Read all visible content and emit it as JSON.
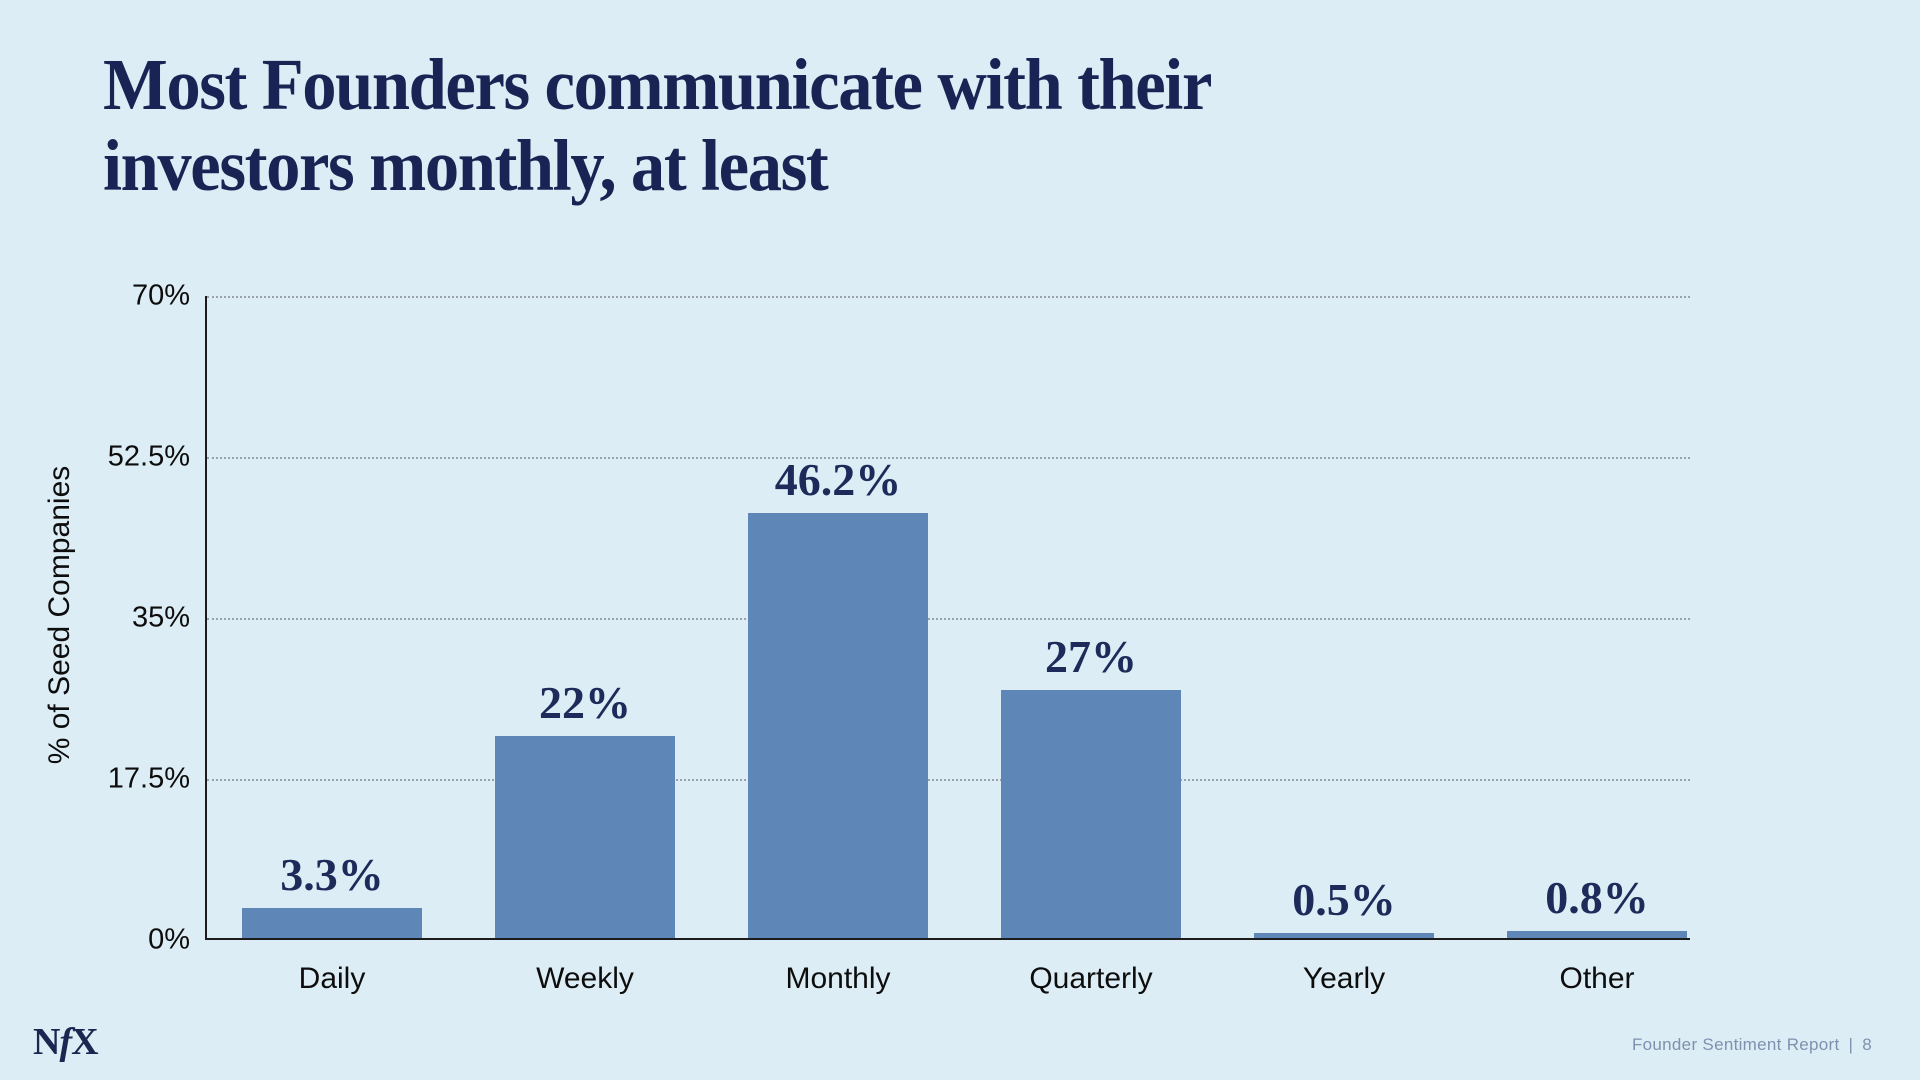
{
  "slide": {
    "title_line1": "Most Founders communicate with their",
    "title_line2": "investors monthly, at least"
  },
  "chart_data": {
    "type": "bar",
    "title": "Most Founders communicate with their investors monthly, at least",
    "categories": [
      "Daily",
      "Weekly",
      "Monthly",
      "Quarterly",
      "Yearly",
      "Other"
    ],
    "values": [
      3.3,
      22,
      46.2,
      27,
      0.5,
      0.8
    ],
    "value_labels": [
      "3.3%",
      "22%",
      "46.2%",
      "27%",
      "0.5%",
      "0.8%"
    ],
    "xlabel": "",
    "ylabel": "% of Seed Companies",
    "ylim": [
      0,
      70
    ],
    "yticks": [
      {
        "label": "0%",
        "value": 0
      },
      {
        "label": "17.5%",
        "value": 17.5
      },
      {
        "label": "35%",
        "value": 35
      },
      {
        "label": "52.5%",
        "value": 52.5
      },
      {
        "label": "70%",
        "value": 70
      }
    ],
    "grid": "horizontal-dotted",
    "legend": "none"
  },
  "colors": {
    "background": "#DDEDF5",
    "title_text": "#1A2454",
    "axis_text": "#0D0D0D",
    "axis_line": "#1C1C1C",
    "gridline": "#99A1A9",
    "bar_fill": "#5E87B7",
    "value_label": "#1E2A5A",
    "logo": "#1B2750",
    "footer_text": "#7E91AF"
  },
  "footer": {
    "logo_parts": [
      "N",
      "f",
      "X"
    ],
    "report_title": "Founder Sentiment Report",
    "separator": "|",
    "page_number": "8"
  }
}
